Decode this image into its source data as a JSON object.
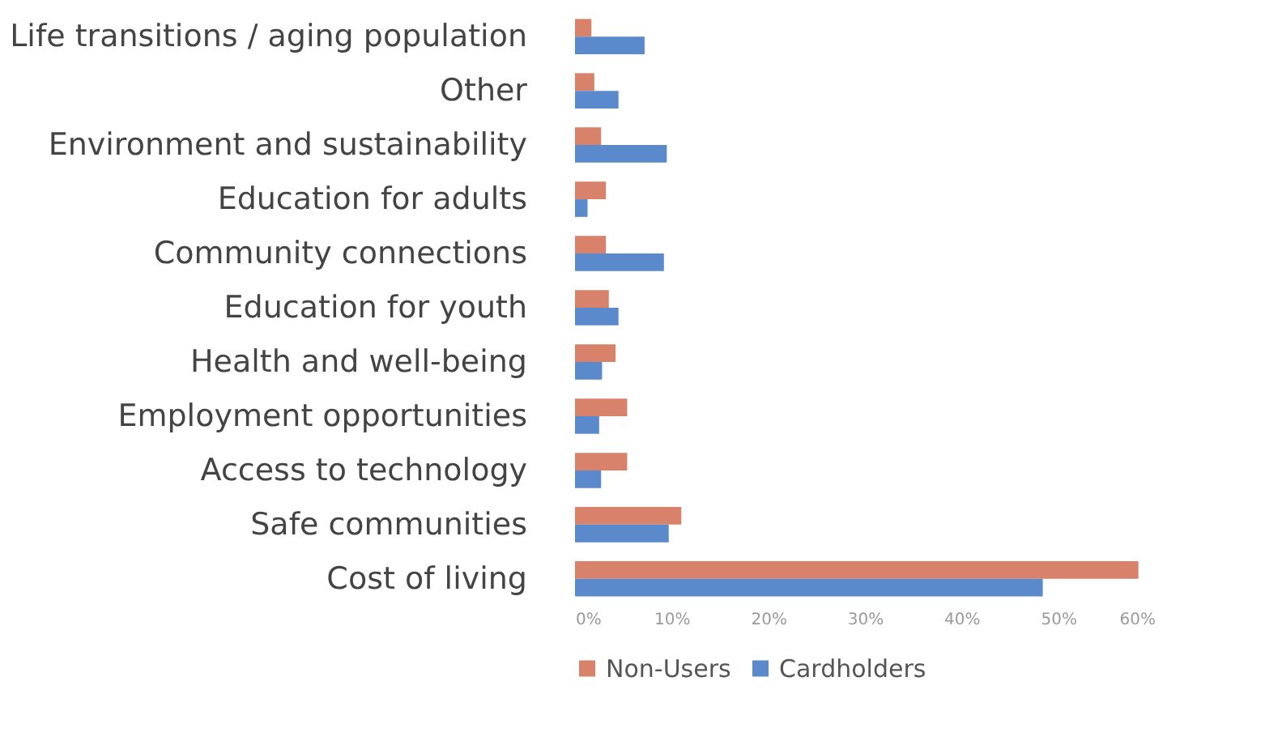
{
  "chart_data": {
    "type": "bar",
    "orientation": "horizontal",
    "categories": [
      "Life transitions / aging population",
      "Other",
      "Environment and sustainability",
      "Education for adults",
      "Community connections",
      "Education for youth",
      "Health and well-being",
      "Employment opportunities",
      "Access to technology",
      "Safe communities",
      "Cost of living"
    ],
    "series": [
      {
        "name": "Non-Users",
        "color": "#d9826b",
        "values": [
          1.7,
          2.0,
          2.7,
          3.2,
          3.2,
          3.5,
          4.2,
          5.4,
          5.4,
          11.0,
          58.3
        ]
      },
      {
        "name": "Cardholders",
        "color": "#5a8acb",
        "values": [
          7.2,
          4.5,
          9.5,
          1.3,
          9.2,
          4.5,
          2.8,
          2.5,
          2.7,
          9.7,
          48.4
        ]
      }
    ],
    "xlim": [
      0,
      60
    ],
    "xticks": [
      {
        "value": 0,
        "label": "0%"
      },
      {
        "value": 10,
        "label": "10%"
      },
      {
        "value": 20,
        "label": "20%"
      },
      {
        "value": 30,
        "label": "30%"
      },
      {
        "value": 40,
        "label": "40%"
      },
      {
        "value": 50,
        "label": "50%"
      },
      {
        "value": 60,
        "label": "60%"
      }
    ],
    "grid": false,
    "legend": "bottom"
  }
}
